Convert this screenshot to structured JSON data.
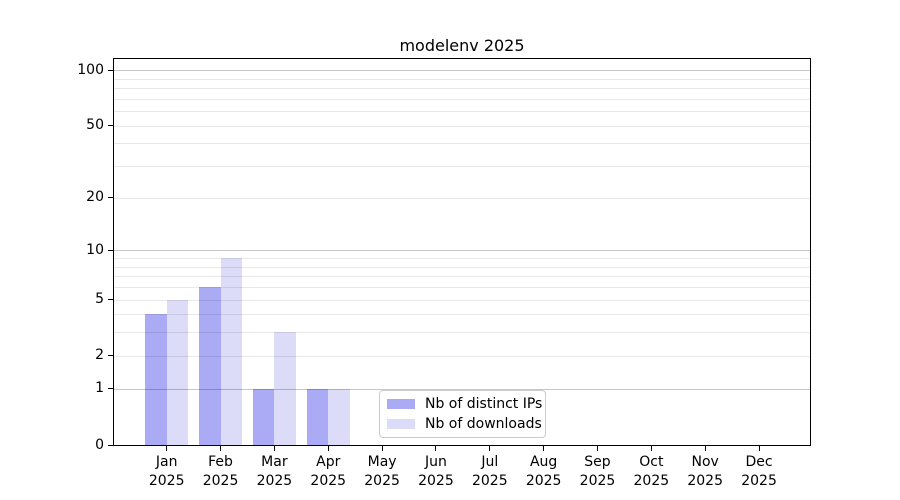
{
  "figure": {
    "title": "modelenv 2025",
    "background": "#ffffff"
  },
  "chart_data": {
    "type": "bar",
    "title": "modelenv 2025",
    "categories": [
      {
        "month": "Jan",
        "year": "2025"
      },
      {
        "month": "Feb",
        "year": "2025"
      },
      {
        "month": "Mar",
        "year": "2025"
      },
      {
        "month": "Apr",
        "year": "2025"
      },
      {
        "month": "May",
        "year": "2025"
      },
      {
        "month": "Jun",
        "year": "2025"
      },
      {
        "month": "Jul",
        "year": "2025"
      },
      {
        "month": "Aug",
        "year": "2025"
      },
      {
        "month": "Sep",
        "year": "2025"
      },
      {
        "month": "Oct",
        "year": "2025"
      },
      {
        "month": "Nov",
        "year": "2025"
      },
      {
        "month": "Dec",
        "year": "2025"
      }
    ],
    "series": [
      {
        "name": "Nb of distinct IPs",
        "color": "#aaaaf5",
        "values": [
          4,
          6,
          1,
          1,
          0,
          0,
          0,
          0,
          0,
          0,
          0,
          0
        ]
      },
      {
        "name": "Nb of downloads",
        "color": "#dcdcf9",
        "values": [
          5,
          9,
          3,
          1,
          0,
          0,
          0,
          0,
          0,
          0,
          0,
          0
        ]
      }
    ],
    "xlabel": "",
    "ylabel": "",
    "yscale": "log1p",
    "ylim": [
      0,
      115
    ],
    "yticks": [
      {
        "value": 0,
        "label": "0"
      },
      {
        "value": 1,
        "label": "1"
      },
      {
        "value": 2,
        "label": "2"
      },
      {
        "value": 5,
        "label": "5"
      },
      {
        "value": 10,
        "label": "10"
      },
      {
        "value": 20,
        "label": "20"
      },
      {
        "value": 50,
        "label": "50"
      },
      {
        "value": 100,
        "label": "100"
      }
    ],
    "major_grid_values": [
      1,
      10,
      100
    ],
    "minor_grid_values": [
      2,
      3,
      4,
      5,
      6,
      7,
      8,
      9,
      20,
      30,
      40,
      50,
      60,
      70,
      80,
      90
    ],
    "grid": true,
    "legend_position": "lower center"
  },
  "colors": {
    "grid_major": "rgba(0,0,0,0.22)",
    "grid_minor": "rgba(0,0,0,0.09)",
    "axis": "#000000",
    "legend_border": "#cccccc"
  }
}
